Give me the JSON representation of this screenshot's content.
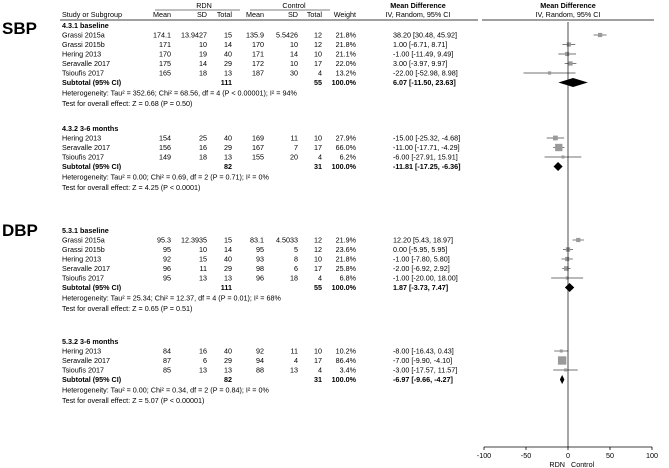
{
  "side_labels": [
    "SBP",
    "DBP"
  ],
  "headers": {
    "group1": "RDN",
    "group2": "Control",
    "study": "Study or Subgroup",
    "mean1": "Mean",
    "sd1": "SD",
    "total1": "Total",
    "mean2": "Mean",
    "sd2": "SD",
    "total2": "Total",
    "weight": "Weight",
    "md_title": "Mean Difference",
    "md_sub": "IV, Random, 95% CI",
    "plot_title": "Mean Difference",
    "plot_sub": "IV, Random, 95% CI"
  },
  "chart_data": {
    "type": "forest",
    "xlim": [
      -100,
      100
    ],
    "x_ticks": [
      "-100",
      "-50",
      "0",
      "50",
      "100"
    ],
    "x_tick_values": [
      -100,
      -50,
      0,
      50,
      100
    ],
    "favours_left": "RDN",
    "favours_right": "Control",
    "subgroups": [
      {
        "title": "4.3.1 baseline",
        "studies": [
          {
            "name": "Grassi 2015a",
            "m1": "174.1",
            "sd1": "13.9427",
            "n1": "15",
            "m2": "135.9",
            "sd2": "5.5426",
            "n2": "12",
            "weight": "21.8%",
            "ci": "38.20 [30.48, 45.92]",
            "est": 38.2,
            "lo": 30.48,
            "hi": 45.92,
            "w": 21.8
          },
          {
            "name": "Grassi 2015b",
            "m1": "171",
            "sd1": "10",
            "n1": "14",
            "m2": "170",
            "sd2": "10",
            "n2": "12",
            "weight": "21.8%",
            "ci": "1.00 [-6.71, 8.71]",
            "est": 1.0,
            "lo": -6.71,
            "hi": 8.71,
            "w": 21.8
          },
          {
            "name": "Hering 2013",
            "m1": "170",
            "sd1": "19",
            "n1": "40",
            "m2": "171",
            "sd2": "14",
            "n2": "10",
            "weight": "21.1%",
            "ci": "-1.00 [-11.49, 9.49]",
            "est": -1.0,
            "lo": -11.49,
            "hi": 9.49,
            "w": 21.1
          },
          {
            "name": "Seravalle 2017",
            "m1": "175",
            "sd1": "14",
            "n1": "29",
            "m2": "172",
            "sd2": "10",
            "n2": "17",
            "weight": "22.0%",
            "ci": "3.00 [-3.97, 9.97]",
            "est": 3.0,
            "lo": -3.97,
            "hi": 9.97,
            "w": 22.0
          },
          {
            "name": "Tsioufis 2017",
            "m1": "165",
            "sd1": "18",
            "n1": "13",
            "m2": "187",
            "sd2": "30",
            "n2": "4",
            "weight": "13.2%",
            "ci": "-22.00 [-52.98, 8.98]",
            "est": -22.0,
            "lo": -52.98,
            "hi": 8.98,
            "w": 13.2
          }
        ],
        "subtotal": {
          "label": "Subtotal (95% CI)",
          "n1": "111",
          "n2": "55",
          "weight": "100.0%",
          "ci": "6.07 [-11.50, 23.63]",
          "est": 6.07,
          "lo": -11.5,
          "hi": 23.63
        },
        "heterogeneity": "Heterogeneity: Tau² = 352.66; Chi² = 68.56, df = 4 (P < 0.00001); I² = 94%",
        "overall": "Test for overall effect: Z = 0.68 (P = 0.50)"
      },
      {
        "title": "4.3.2 3-6 months",
        "studies": [
          {
            "name": "Hering 2013",
            "m1": "154",
            "sd1": "25",
            "n1": "40",
            "m2": "169",
            "sd2": "11",
            "n2": "10",
            "weight": "27.9%",
            "ci": "-15.00 [-25.32, -4.68]",
            "est": -15.0,
            "lo": -25.32,
            "hi": -4.68,
            "w": 27.9
          },
          {
            "name": "Seravalle 2017",
            "m1": "156",
            "sd1": "16",
            "n1": "29",
            "m2": "167",
            "sd2": "7",
            "n2": "17",
            "weight": "66.0%",
            "ci": "-11.00 [-17.71, -4.29]",
            "est": -11.0,
            "lo": -17.71,
            "hi": -4.29,
            "w": 66.0
          },
          {
            "name": "Tsioufis 2017",
            "m1": "149",
            "sd1": "18",
            "n1": "13",
            "m2": "155",
            "sd2": "20",
            "n2": "4",
            "weight": "6.2%",
            "ci": "-6.00 [-27.91, 15.91]",
            "est": -6.0,
            "lo": -27.91,
            "hi": 15.91,
            "w": 6.2
          }
        ],
        "subtotal": {
          "label": "Subtotal (95% CI)",
          "n1": "82",
          "n2": "31",
          "weight": "100.0%",
          "ci": "-11.81 [-17.25, -6.36]",
          "est": -11.81,
          "lo": -17.25,
          "hi": -6.36
        },
        "heterogeneity": "Heterogeneity: Tau² = 0.00; Chi² = 0.69, df = 2 (P = 0.71); I² = 0%",
        "overall": "Test for overall effect: Z = 4.25 (P < 0.0001)"
      },
      {
        "title": "5.3.1 baseline",
        "studies": [
          {
            "name": "Grassi 2015a",
            "m1": "95.3",
            "sd1": "12.3935",
            "n1": "15",
            "m2": "83.1",
            "sd2": "4.5033",
            "n2": "12",
            "weight": "21.9%",
            "ci": "12.20 [5.43, 18.97]",
            "est": 12.2,
            "lo": 5.43,
            "hi": 18.97,
            "w": 21.9
          },
          {
            "name": "Grassi 2015b",
            "m1": "95",
            "sd1": "10",
            "n1": "14",
            "m2": "95",
            "sd2": "5",
            "n2": "12",
            "weight": "23.6%",
            "ci": "0.00 [-5.95, 5.95]",
            "est": 0.0,
            "lo": -5.95,
            "hi": 5.95,
            "w": 23.6
          },
          {
            "name": "Hering 2013",
            "m1": "92",
            "sd1": "15",
            "n1": "40",
            "m2": "93",
            "sd2": "8",
            "n2": "10",
            "weight": "21.8%",
            "ci": "-1.00 [-7.80, 5.80]",
            "est": -1.0,
            "lo": -7.8,
            "hi": 5.8,
            "w": 21.8
          },
          {
            "name": "Seravalle 2017",
            "m1": "96",
            "sd1": "11",
            "n1": "29",
            "m2": "98",
            "sd2": "6",
            "n2": "17",
            "weight": "25.8%",
            "ci": "-2.00 [-6.92, 2.92]",
            "est": -2.0,
            "lo": -6.92,
            "hi": 2.92,
            "w": 25.8
          },
          {
            "name": "Tsioufis 2017",
            "m1": "95",
            "sd1": "13",
            "n1": "13",
            "m2": "96",
            "sd2": "18",
            "n2": "4",
            "weight": "6.8%",
            "ci": "-1.00 [-20.00, 18.00]",
            "est": -1.0,
            "lo": -20.0,
            "hi": 18.0,
            "w": 6.8
          }
        ],
        "subtotal": {
          "label": "Subtotal (95% CI)",
          "n1": "111",
          "n2": "55",
          "weight": "100.0%",
          "ci": "1.87 [-3.73, 7.47]",
          "est": 1.87,
          "lo": -3.73,
          "hi": 7.47
        },
        "heterogeneity": "Heterogeneity: Tau² = 25.34; Chi² = 12.37, df = 4 (P = 0.01); I² = 68%",
        "overall": "Test for overall effect: Z = 0.65 (P = 0.51)"
      },
      {
        "title": "5.3.2 3-6 months",
        "studies": [
          {
            "name": "Hering 2013",
            "m1": "84",
            "sd1": "16",
            "n1": "40",
            "m2": "92",
            "sd2": "11",
            "n2": "10",
            "weight": "10.2%",
            "ci": "-8.00 [-16.43, 0.43]",
            "est": -8.0,
            "lo": -16.43,
            "hi": 0.43,
            "w": 10.2
          },
          {
            "name": "Seravalle 2017",
            "m1": "87",
            "sd1": "6",
            "n1": "29",
            "m2": "94",
            "sd2": "4",
            "n2": "17",
            "weight": "86.4%",
            "ci": "-7.00 [-9.90, -4.10]",
            "est": -7.0,
            "lo": -9.9,
            "hi": -4.1,
            "w": 86.4
          },
          {
            "name": "Tsioufis 2017",
            "m1": "85",
            "sd1": "13",
            "n1": "13",
            "m2": "88",
            "sd2": "13",
            "n2": "4",
            "weight": "3.4%",
            "ci": "-3.00 [-17.57, 11.57]",
            "est": -3.0,
            "lo": -17.57,
            "hi": 11.57,
            "w": 3.4
          }
        ],
        "subtotal": {
          "label": "Subtotal (95% CI)",
          "n1": "82",
          "n2": "31",
          "weight": "100.0%",
          "ci": "-6.97 [-9.66, -4.27]",
          "est": -6.97,
          "lo": -9.66,
          "hi": -4.27
        },
        "heterogeneity": "Heterogeneity: Tau² = 0.00; Chi² = 0.34, df = 2 (P = 0.84); I² = 0%",
        "overall": "Test for overall effect: Z = 5.07 (P < 0.00001)"
      }
    ]
  }
}
